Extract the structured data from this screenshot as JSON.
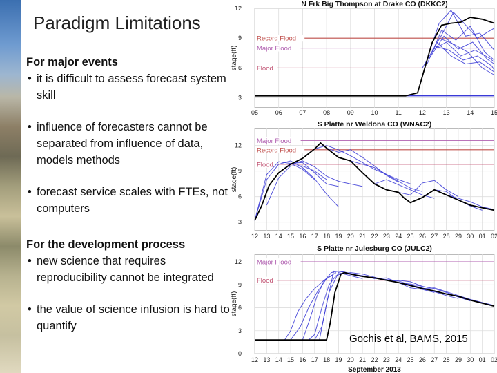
{
  "slide": {
    "title": "Paradigm Limitations",
    "section1": {
      "heading": "For major events",
      "bullets": [
        "it is difficult to assess forecast system skill",
        "influence of forecasters cannot be separated from influence of data, models methods",
        "forecast service scales with FTEs, not computers"
      ]
    },
    "section2": {
      "heading": "For the development process",
      "bullets": [
        "new science that requires reproducibility cannot be integrated",
        "the value of science infusion is hard to quantify"
      ]
    },
    "bullet_glyph": "•",
    "citation": "Gochis et al, BAMS, 2015"
  },
  "colors": {
    "observed": "#000000",
    "forecast": "#3a3ad6",
    "threshold_record": "#c0504d",
    "threshold_major": "#b060b0",
    "threshold_flood": "#c05070",
    "baseline": "#3a3ad6"
  },
  "chart_data": [
    {
      "type": "line",
      "title": "N Frk Big Thompson at Drake CO (DKKC2)",
      "ylabel": "stage(ft)",
      "ylim": [
        2,
        12
      ],
      "y_ticks": [
        "3",
        "6",
        "9",
        "12"
      ],
      "x_tick_labels": [
        "05",
        "06",
        "07",
        "08",
        "09",
        "10",
        "11",
        "12",
        "13",
        "14",
        "15"
      ],
      "xlim": [
        5,
        15
      ],
      "thresholds": [
        {
          "label": "Record Flood",
          "value": 9.0,
          "kind": "record"
        },
        {
          "label": "Major Flood",
          "value": 8.0,
          "kind": "major"
        },
        {
          "label": "Flood",
          "value": 6.0,
          "kind": "flood"
        }
      ],
      "baseline": 3.2,
      "observed": {
        "x": [
          5,
          11.3,
          11.8,
          12.1,
          12.4,
          12.8,
          13.2,
          13.6,
          14.0,
          14.5,
          15.0
        ],
        "y": [
          3.2,
          3.2,
          3.5,
          6.0,
          8.5,
          10.3,
          10.5,
          10.6,
          11.1,
          10.9,
          10.5
        ]
      },
      "forecasts": [
        {
          "x": [
            12.0,
            12.8,
            13.3,
            13.7,
            14.3,
            15.0
          ],
          "y": [
            6.0,
            9.3,
            11.6,
            10.6,
            9.0,
            10.0
          ]
        },
        {
          "x": [
            12.1,
            12.7,
            13.2,
            13.8,
            14.4,
            15.0
          ],
          "y": [
            6.2,
            10.5,
            11.8,
            9.2,
            9.5,
            7.8
          ]
        },
        {
          "x": [
            12.2,
            12.8,
            13.4,
            14.0,
            14.6,
            15.0
          ],
          "y": [
            6.4,
            9.8,
            8.8,
            10.2,
            7.6,
            6.8
          ]
        },
        {
          "x": [
            12.3,
            12.9,
            13.5,
            14.1,
            14.7,
            15.0
          ],
          "y": [
            7.0,
            9.2,
            7.9,
            8.6,
            6.9,
            6.4
          ]
        },
        {
          "x": [
            12.4,
            13.0,
            13.6,
            14.2,
            14.8,
            15.0
          ],
          "y": [
            7.8,
            8.6,
            7.2,
            7.8,
            7.0,
            6.6
          ]
        },
        {
          "x": [
            12.5,
            13.1,
            13.7,
            14.3,
            14.9,
            15.0
          ],
          "y": [
            8.2,
            7.8,
            6.8,
            7.2,
            6.2,
            5.8
          ]
        },
        {
          "x": [
            12.6,
            13.2,
            13.8,
            14.4,
            15.0
          ],
          "y": [
            8.6,
            7.2,
            6.4,
            6.6,
            5.6
          ]
        },
        {
          "x": [
            12.7,
            13.3,
            13.9,
            14.5,
            15.0
          ],
          "y": [
            9.0,
            8.4,
            7.6,
            6.0,
            5.3
          ]
        }
      ]
    },
    {
      "type": "line",
      "title": "S Platte nr Weldona CO (WNAC2)",
      "ylabel": "stage(ft)",
      "ylim": [
        2,
        14
      ],
      "y_ticks": [
        "3",
        "6",
        "9",
        "12"
      ],
      "x_tick_labels": [
        "12",
        "13",
        "14",
        "15",
        "16",
        "17",
        "18",
        "19",
        "20",
        "21",
        "22",
        "23",
        "24",
        "25",
        "26",
        "27",
        "28",
        "29",
        "30",
        "01",
        "02"
      ],
      "xlim": [
        12,
        32
      ],
      "thresholds": [
        {
          "label": "Major Flood",
          "value": 12.6,
          "kind": "major"
        },
        {
          "label": "Record Flood",
          "value": 11.5,
          "kind": "record"
        },
        {
          "label": "Flood",
          "value": 9.8,
          "kind": "flood"
        }
      ],
      "observed": {
        "x": [
          12,
          12.6,
          13.2,
          14.0,
          15.0,
          16.0,
          17.0,
          17.5,
          18.0,
          19.0,
          20.0,
          21.0,
          22.0,
          23.0,
          24.0,
          24.5,
          25.0,
          26.0,
          27.0,
          28.0,
          29.0,
          30.0,
          31.0,
          32.0
        ],
        "y": [
          3.2,
          5.0,
          7.3,
          8.8,
          9.8,
          10.5,
          11.6,
          12.3,
          11.7,
          10.6,
          10.2,
          8.8,
          7.5,
          6.8,
          6.5,
          5.8,
          5.3,
          5.9,
          6.8,
          6.2,
          5.6,
          5.0,
          4.7,
          4.4
        ]
      },
      "forecasts": [
        {
          "x": [
            12,
            13,
            14,
            15,
            16,
            17,
            18,
            19
          ],
          "y": [
            3.2,
            8.0,
            9.8,
            10.2,
            9.4,
            8.1,
            6.3,
            4.8
          ]
        },
        {
          "x": [
            12,
            13,
            14,
            15,
            16,
            17
          ],
          "y": [
            3.2,
            8.6,
            10.1,
            9.9,
            9.2,
            8.0
          ]
        },
        {
          "x": [
            13,
            14,
            15,
            16,
            17,
            18
          ],
          "y": [
            5.0,
            8.2,
            9.6,
            9.6,
            9.0,
            8.0
          ]
        },
        {
          "x": [
            14,
            15,
            16,
            17,
            18,
            19
          ],
          "y": [
            8.8,
            9.9,
            10.0,
            8.8,
            7.5,
            7.2
          ]
        },
        {
          "x": [
            15,
            16,
            17,
            18,
            19,
            20,
            21
          ],
          "y": [
            9.8,
            10.2,
            9.5,
            8.4,
            7.8,
            7.5,
            7.2
          ]
        },
        {
          "x": [
            17,
            18,
            19,
            20,
            21,
            22,
            23,
            24,
            25
          ],
          "y": [
            11.6,
            12.0,
            11.5,
            10.8,
            10.0,
            9.2,
            8.6,
            8.0,
            7.5
          ]
        },
        {
          "x": [
            18,
            19,
            20,
            21,
            22,
            23,
            24
          ],
          "y": [
            11.7,
            11.2,
            11.5,
            10.6,
            9.6,
            8.5,
            7.7
          ]
        },
        {
          "x": [
            20,
            21,
            22,
            23,
            24,
            25,
            26
          ],
          "y": [
            10.2,
            9.8,
            9.4,
            8.6,
            7.8,
            7.0,
            6.6
          ]
        },
        {
          "x": [
            22,
            23,
            24,
            25,
            26,
            27
          ],
          "y": [
            7.5,
            8.0,
            7.4,
            6.8,
            6.2,
            5.8
          ]
        },
        {
          "x": [
            24,
            25,
            26,
            27,
            28,
            29
          ],
          "y": [
            6.5,
            6.2,
            7.6,
            7.9,
            6.8,
            6.0
          ]
        },
        {
          "x": [
            26,
            27,
            28,
            29,
            30,
            31
          ],
          "y": [
            5.9,
            6.8,
            6.6,
            5.6,
            4.9,
            4.4
          ]
        },
        {
          "x": [
            28,
            29,
            30,
            31,
            32
          ],
          "y": [
            6.2,
            5.8,
            5.4,
            4.8,
            4.5
          ]
        }
      ]
    },
    {
      "type": "line",
      "title": "S Platte nr Julesburg CO (JULC2)",
      "ylabel": "stage(ft)",
      "ylim": [
        0,
        13
      ],
      "y_ticks": [
        "0",
        "3",
        "6",
        "9",
        "12"
      ],
      "x_tick_labels": [
        "12",
        "13",
        "14",
        "15",
        "16",
        "17",
        "18",
        "19",
        "20",
        "21",
        "22",
        "23",
        "24",
        "25",
        "26",
        "27",
        "28",
        "29",
        "30",
        "01",
        "02"
      ],
      "xlim": [
        12,
        32
      ],
      "x_axis_title": "September 2013",
      "thresholds": [
        {
          "label": "Major Flood",
          "value": 12.0,
          "kind": "major"
        },
        {
          "label": "Flood",
          "value": 9.6,
          "kind": "flood"
        }
      ],
      "observed": {
        "x": [
          12,
          18.0,
          18.3,
          18.7,
          19.2,
          19.5,
          20.0,
          21.0,
          22.0,
          23.0,
          24.0,
          25.0,
          26.0,
          27.0,
          28.0,
          29.0,
          30.0,
          31.0,
          32.0
        ],
        "y": [
          1.8,
          1.8,
          4.0,
          8.0,
          10.4,
          10.6,
          10.4,
          10.1,
          9.9,
          9.6,
          9.3,
          8.9,
          8.5,
          8.2,
          7.8,
          7.5,
          7.0,
          6.6,
          6.2
        ]
      },
      "forecasts": [
        {
          "x": [
            14.5,
            15.0,
            15.6,
            16.3,
            17.0,
            17.8,
            18.5
          ],
          "y": [
            1.8,
            3.0,
            5.5,
            7.2,
            8.5,
            9.6,
            10.3
          ]
        },
        {
          "x": [
            15.0,
            15.8,
            16.5,
            17.2,
            18.0,
            18.8
          ],
          "y": [
            1.8,
            3.5,
            6.0,
            8.0,
            9.8,
            10.6
          ]
        },
        {
          "x": [
            16.0,
            16.6,
            17.2,
            17.8,
            18.4,
            19.0,
            19.8
          ],
          "y": [
            1.8,
            4.5,
            7.5,
            9.5,
            10.6,
            10.8,
            10.5
          ]
        },
        {
          "x": [
            16.5,
            17.0,
            17.6,
            18.2,
            18.8,
            19.5
          ],
          "y": [
            1.8,
            2.5,
            6.0,
            9.0,
            10.2,
            10.6
          ]
        },
        {
          "x": [
            17.0,
            17.6,
            18.2,
            19.0,
            20.0,
            21.0
          ],
          "y": [
            1.8,
            3.5,
            8.0,
            10.6,
            10.2,
            9.8
          ]
        },
        {
          "x": [
            17.4,
            18.0,
            18.6,
            19.4,
            20.5
          ],
          "y": [
            1.8,
            6.5,
            10.8,
            10.7,
            10.3
          ]
        },
        {
          "x": [
            19.0,
            20.0,
            21.0,
            22.0,
            23.0,
            24.0,
            25.0,
            26.0
          ],
          "y": [
            10.4,
            10.6,
            10.4,
            10.0,
            9.6,
            9.6,
            9.4,
            8.8
          ]
        },
        {
          "x": [
            20.0,
            21.0,
            22.0,
            23.0,
            24.0,
            25.0,
            26.0,
            27.0
          ],
          "y": [
            10.4,
            10.2,
            9.8,
            9.9,
            9.3,
            8.6,
            8.4,
            8.0
          ]
        },
        {
          "x": [
            22.0,
            23.0,
            24.0,
            25.0,
            26.0,
            27.0,
            28.0,
            29.0
          ],
          "y": [
            9.9,
            9.7,
            9.5,
            9.0,
            8.6,
            8.1,
            7.6,
            7.2
          ]
        },
        {
          "x": [
            24.0,
            25.0,
            26.0,
            27.0,
            28.0,
            29.0,
            30.0
          ],
          "y": [
            9.3,
            9.1,
            8.8,
            8.5,
            8.0,
            7.4,
            6.9
          ]
        },
        {
          "x": [
            26.0,
            27.0,
            28.0,
            29.0,
            30.0,
            31.0,
            32.0
          ],
          "y": [
            8.5,
            8.6,
            8.1,
            7.6,
            7.1,
            6.7,
            6.3
          ]
        }
      ]
    }
  ]
}
